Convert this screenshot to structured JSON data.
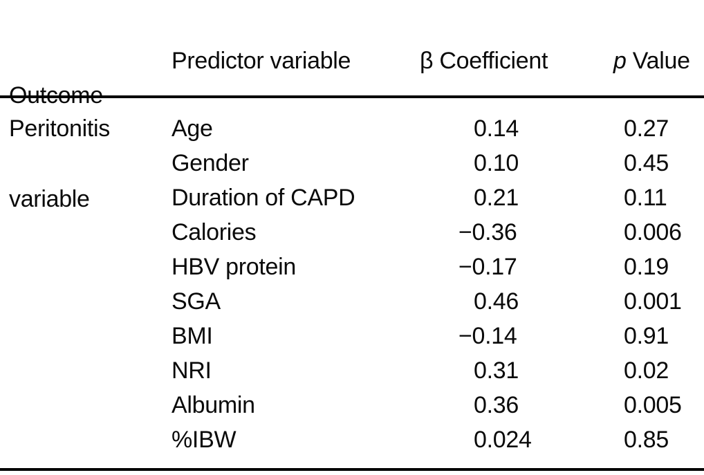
{
  "table": {
    "headers": {
      "outcome_line1": "Outcome",
      "outcome_line2": "variable",
      "predictor": "Predictor variable",
      "beta_symbol": "β",
      "beta_rest": " Coefficient",
      "p_italic": "p",
      "p_rest": " Value"
    },
    "outcome_value": "Peritonitis",
    "rows": [
      {
        "predictor": "Age",
        "beta": "0.14",
        "p": "0.27"
      },
      {
        "predictor": "Gender",
        "beta": "0.10",
        "p": "0.45"
      },
      {
        "predictor": "Duration of CAPD",
        "beta": "0.21",
        "p": "0.11"
      },
      {
        "predictor": "Calories",
        "beta": "−0.36",
        "p": "0.006"
      },
      {
        "predictor": "HBV protein",
        "beta": "−0.17",
        "p": "0.19"
      },
      {
        "predictor": "SGA",
        "beta": "0.46",
        "p": "0.001"
      },
      {
        "predictor": "BMI",
        "beta": "−0.14",
        "p": "0.91"
      },
      {
        "predictor": "NRI",
        "beta": "0.31",
        "p": "0.02"
      },
      {
        "predictor": "Albumin",
        "beta": "0.36",
        "p": "0.005"
      },
      {
        "predictor": "%IBW",
        "beta": "0.024",
        "p": "0.85"
      }
    ],
    "colors": {
      "text": "#0a0a0a",
      "rule": "#000000",
      "background": "#ffffff"
    }
  }
}
